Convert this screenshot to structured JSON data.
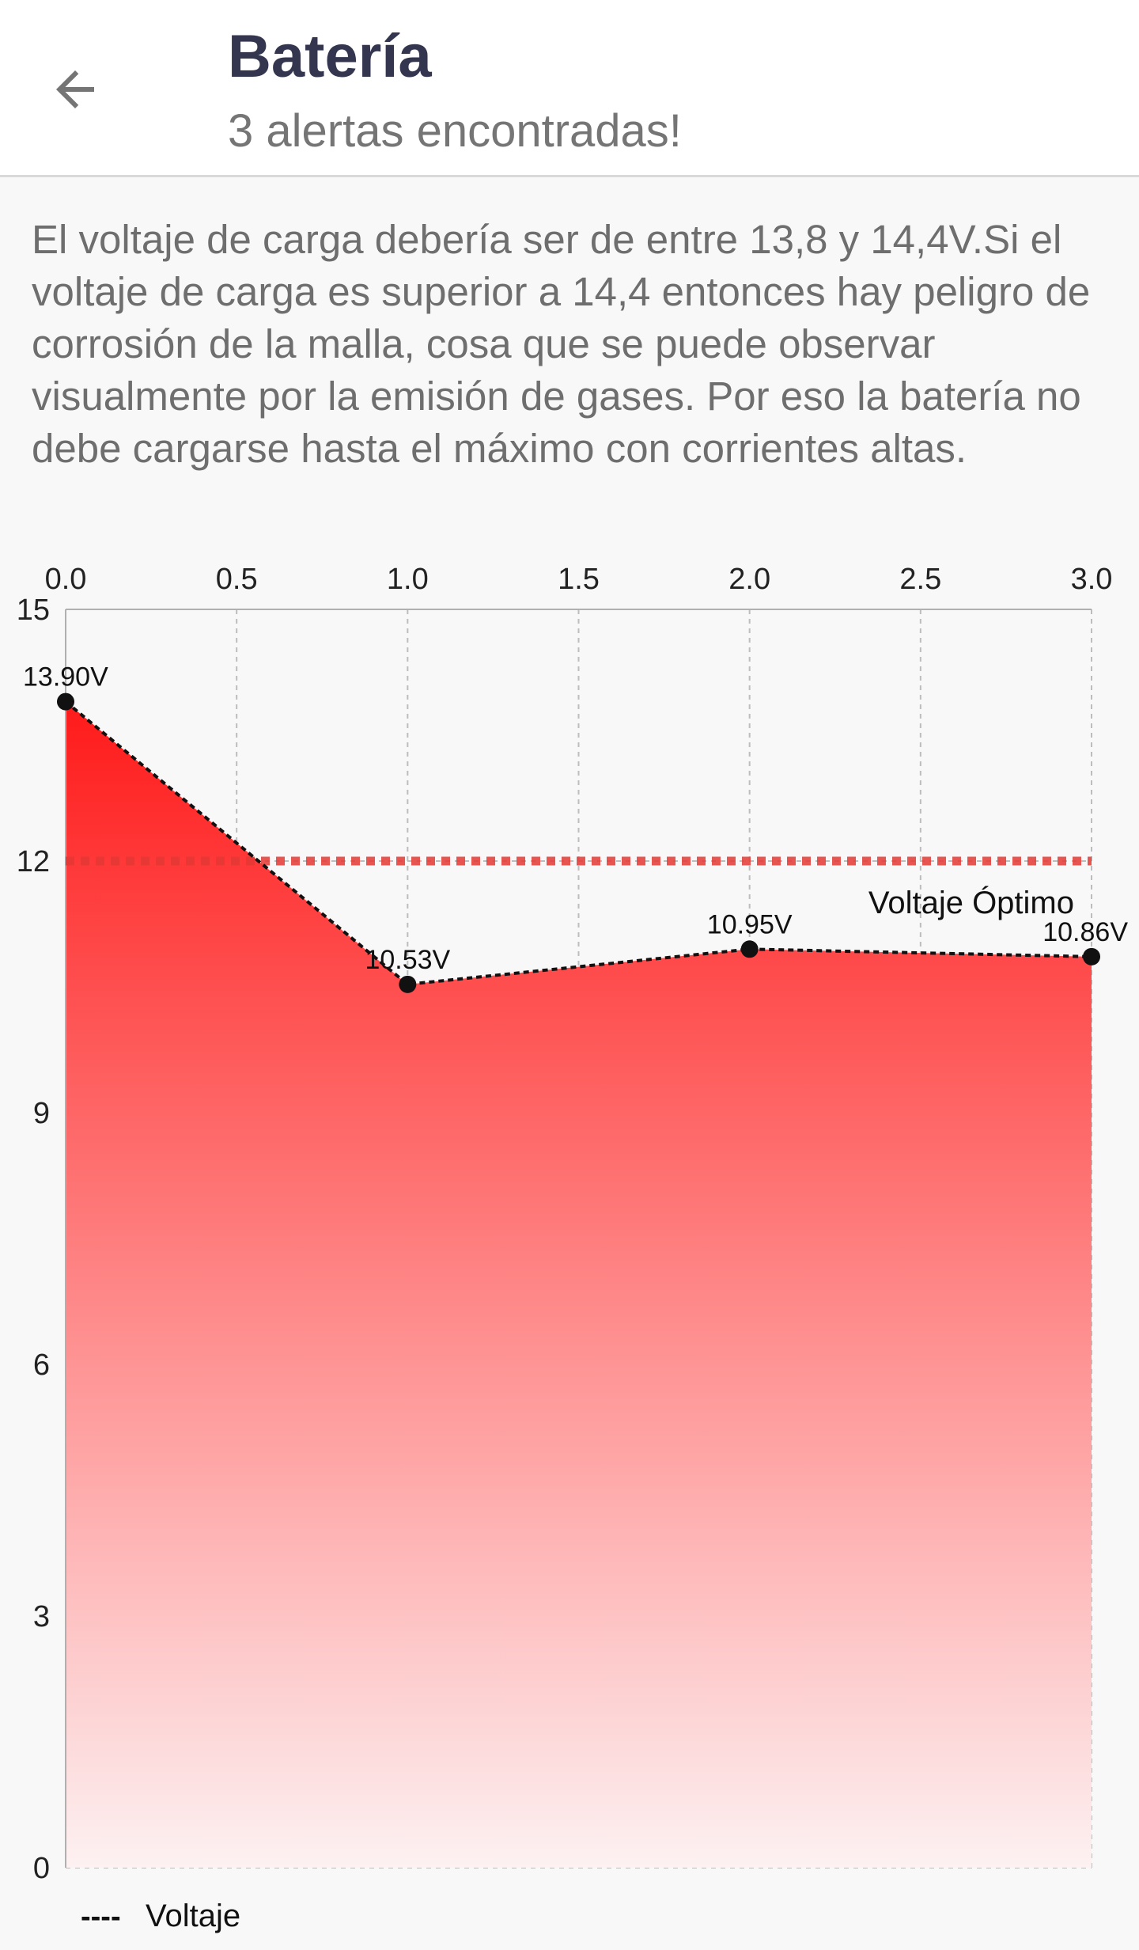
{
  "header": {
    "back_icon": "arrow-back-icon",
    "title": "Batería",
    "subtitle": "3 alertas encontradas!"
  },
  "description": "El voltaje de carga debería ser de entre 13,8 y 14,4V.Si el voltaje de carga es superior a 14,4 entonces hay peligro de corrosión de la malla, cosa que se puede observar visualmente por la emisión de gases. Por eso la batería no debe cargarse hasta el máximo con corrientes altas.",
  "colors": {
    "area_top": "#ff1a1a",
    "area_bottom": "#fdf1f2",
    "limit_line": "#e53935",
    "title": "#343650",
    "text": "#6e6e6e"
  },
  "chart_data": {
    "type": "area",
    "x": [
      0,
      1,
      2,
      3
    ],
    "series": [
      {
        "name": "Voltaje",
        "values": [
          13.9,
          10.53,
          10.95,
          10.86
        ],
        "labels": [
          "13.90V",
          "10.53V",
          "10.95V",
          "10.86V"
        ]
      }
    ],
    "x_ticks": [
      "0.0",
      "0.5",
      "1.0",
      "1.5",
      "2.0",
      "2.5",
      "3.0"
    ],
    "y_ticks": [
      "0",
      "3",
      "6",
      "9",
      "12",
      "15"
    ],
    "xlim": [
      0,
      3
    ],
    "ylim": [
      0,
      15
    ],
    "x_axis_position": "top",
    "grid": true,
    "limit_line": {
      "value": 12,
      "label": "Voltaje Óptimo"
    },
    "legend": {
      "position": "bottom-left",
      "label": "Voltaje",
      "symbol": "----"
    }
  }
}
